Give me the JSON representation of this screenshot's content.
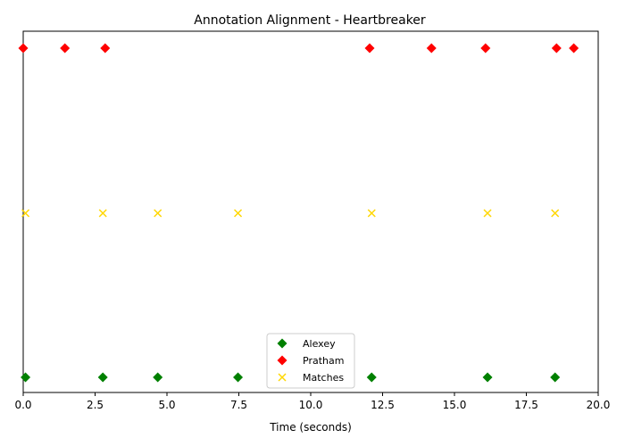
{
  "chart_data": {
    "type": "scatter",
    "title": "Annotation Alignment - Heartbreaker",
    "xlabel": "Time (seconds)",
    "ylabel": "",
    "xlim": [
      0,
      20
    ],
    "xticks": [
      0,
      2.5,
      5,
      7.5,
      10,
      12.5,
      15,
      17.5,
      20
    ],
    "xtick_labels": [
      "0.0",
      "2.5",
      "5.0",
      "7.5",
      "10.0",
      "12.5",
      "15.0",
      "17.5",
      "20.0"
    ],
    "grid": false,
    "legend_position": "bottom-center",
    "series": [
      {
        "name": "Alexey",
        "marker": "diamond",
        "color": "#008000",
        "row": "bottom",
        "x": [
          0.08,
          2.77,
          4.68,
          7.47,
          12.12,
          16.15,
          18.5
        ]
      },
      {
        "name": "Pratham",
        "marker": "diamond",
        "color": "#ff0000",
        "row": "top",
        "x": [
          0.0,
          1.45,
          2.85,
          12.05,
          14.2,
          16.08,
          18.55,
          19.15
        ]
      },
      {
        "name": "Matches",
        "marker": "x",
        "color": "#ffd700",
        "row": "middle",
        "x": [
          0.08,
          2.77,
          4.68,
          7.47,
          12.12,
          16.15,
          18.5
        ]
      }
    ]
  }
}
